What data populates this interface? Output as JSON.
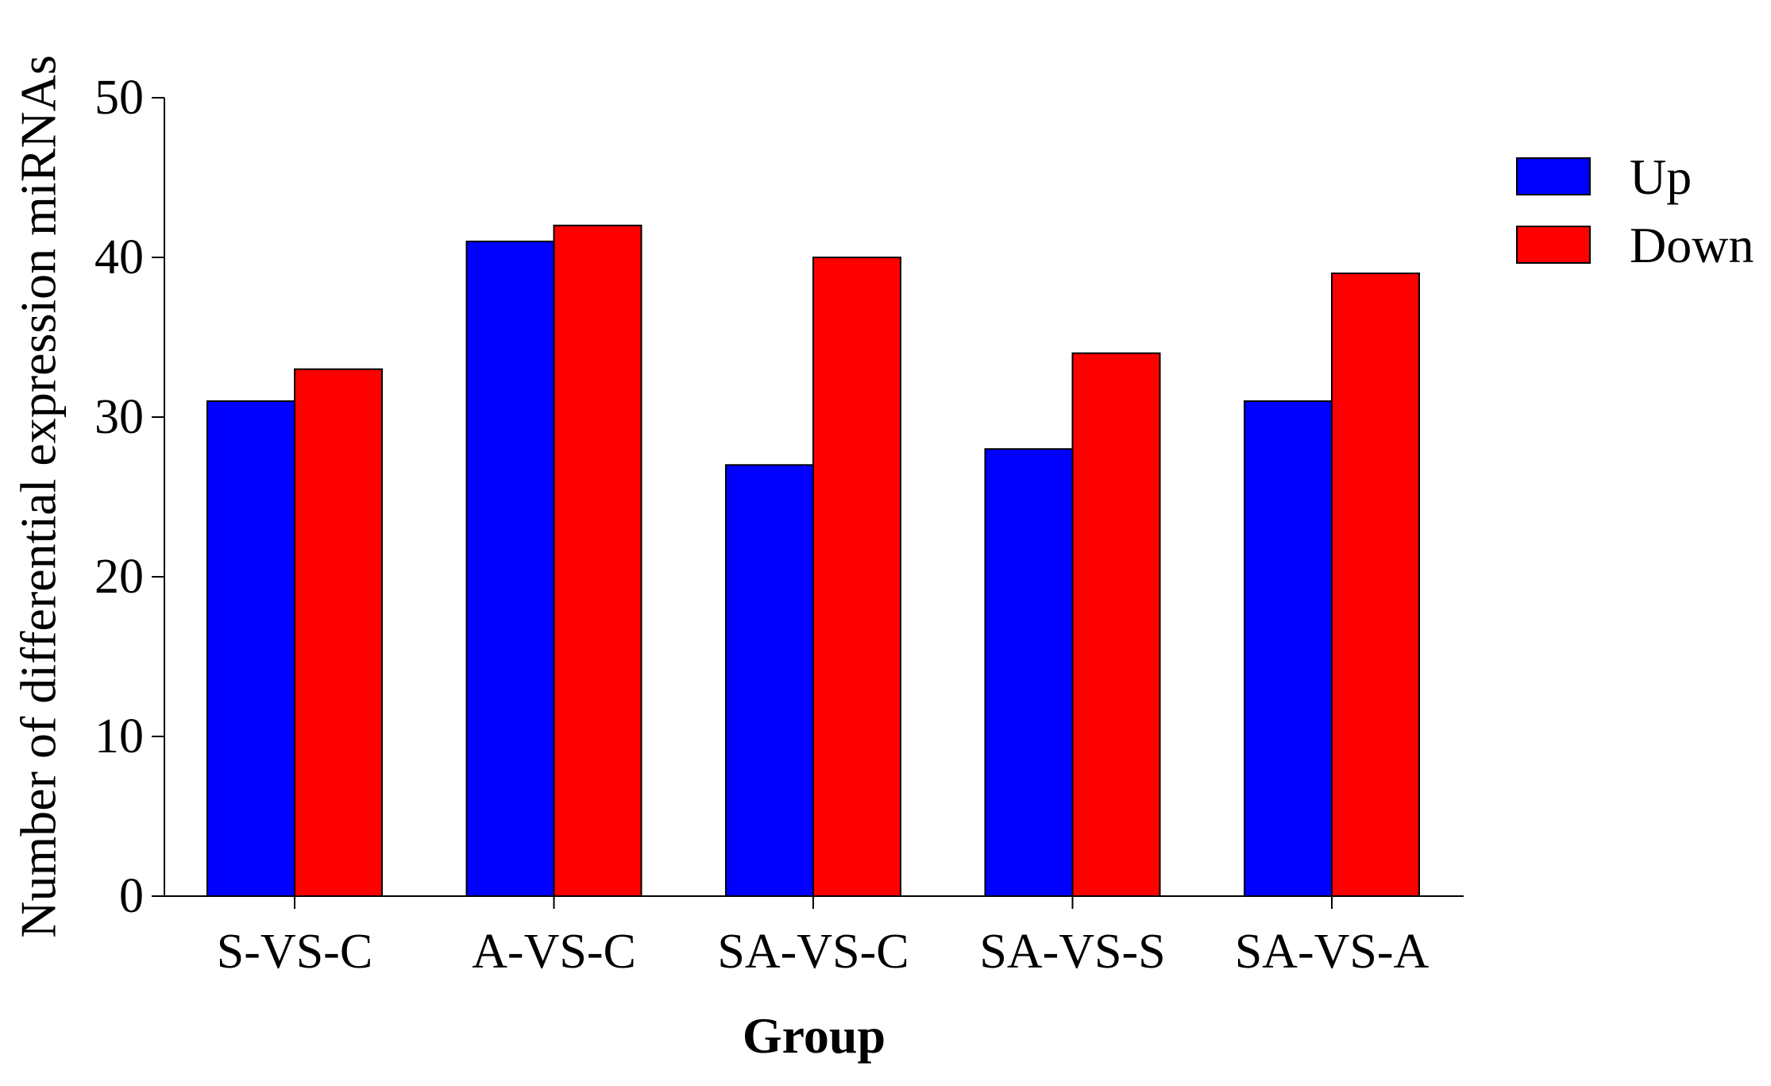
{
  "chart_data": {
    "type": "bar",
    "title": "",
    "xlabel": "Group",
    "ylabel": "Number of differential expression miRNAs",
    "categories": [
      "S-VS-C",
      "A-VS-C",
      "SA-VS-C",
      "SA-VS-S",
      "SA-VS-A"
    ],
    "series": [
      {
        "name": "Up",
        "color": "#0000FF",
        "values": [
          31,
          41,
          27,
          28,
          31
        ]
      },
      {
        "name": "Down",
        "color": "#FF0000",
        "values": [
          33,
          42,
          40,
          34,
          39
        ]
      }
    ],
    "ylim": [
      0,
      50
    ],
    "yticks": [
      "0",
      "10",
      "20",
      "30",
      "40",
      "50"
    ],
    "grid": false,
    "legend": "top-right"
  }
}
